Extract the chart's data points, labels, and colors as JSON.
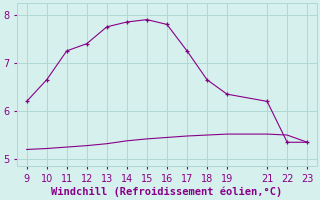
{
  "x": [
    9,
    10,
    11,
    12,
    13,
    14,
    15,
    16,
    17,
    18,
    19,
    21,
    22,
    23
  ],
  "y_upper": [
    6.2,
    6.65,
    7.25,
    7.4,
    7.75,
    7.85,
    7.9,
    7.8,
    7.25,
    6.65,
    6.35,
    6.2,
    5.35,
    5.35
  ],
  "y_lower": [
    5.2,
    5.22,
    5.25,
    5.28,
    5.32,
    5.38,
    5.42,
    5.45,
    5.48,
    5.5,
    5.52,
    5.52,
    5.5,
    5.35
  ],
  "line_color": "#880088",
  "bg_color": "#d6f0ee",
  "grid_color": "#b0d8d4",
  "xlabel": "Windchill (Refroidissement éolien,°C)",
  "xlabel_color": "#880088",
  "tick_color": "#880088",
  "xlim": [
    8.5,
    23.5
  ],
  "ylim": [
    4.85,
    8.25
  ],
  "xticks": [
    9,
    10,
    11,
    12,
    13,
    14,
    15,
    16,
    17,
    18,
    19,
    21,
    22,
    23
  ],
  "yticks": [
    5,
    6,
    7,
    8
  ],
  "tick_fontsize": 7,
  "xlabel_fontsize": 7.5
}
